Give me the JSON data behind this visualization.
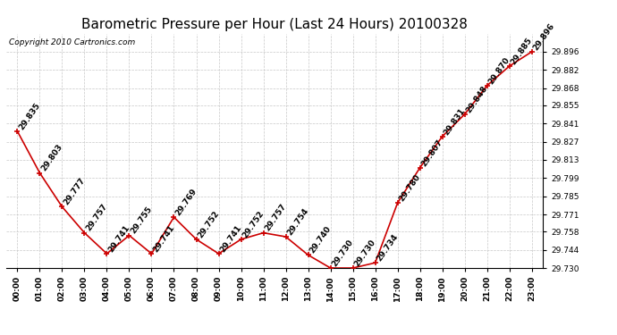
{
  "title": "Barometric Pressure per Hour (Last 24 Hours) 20100328",
  "copyright": "Copyright 2010 Cartronics.com",
  "hours": [
    "00:00",
    "01:00",
    "02:00",
    "03:00",
    "04:00",
    "05:00",
    "06:00",
    "07:00",
    "08:00",
    "09:00",
    "10:00",
    "11:00",
    "12:00",
    "13:00",
    "14:00",
    "15:00",
    "16:00",
    "17:00",
    "18:00",
    "19:00",
    "20:00",
    "21:00",
    "22:00",
    "23:00"
  ],
  "values": [
    29.835,
    29.803,
    29.777,
    29.757,
    29.741,
    29.755,
    29.741,
    29.769,
    29.752,
    29.741,
    29.752,
    29.757,
    29.754,
    29.74,
    29.73,
    29.73,
    29.734,
    29.78,
    29.807,
    29.831,
    29.848,
    29.87,
    29.885,
    29.896
  ],
  "ylim_min": 29.73,
  "ylim_max": 29.91,
  "ytick_values": [
    29.73,
    29.744,
    29.758,
    29.771,
    29.785,
    29.799,
    29.813,
    29.827,
    29.841,
    29.855,
    29.868,
    29.882,
    29.896
  ],
  "line_color": "#cc0000",
  "marker_color": "#cc0000",
  "bg_color": "#ffffff",
  "grid_color": "#c8c8c8",
  "title_fontsize": 11,
  "label_fontsize": 6.5,
  "annot_fontsize": 6.5,
  "copyright_fontsize": 6.5
}
